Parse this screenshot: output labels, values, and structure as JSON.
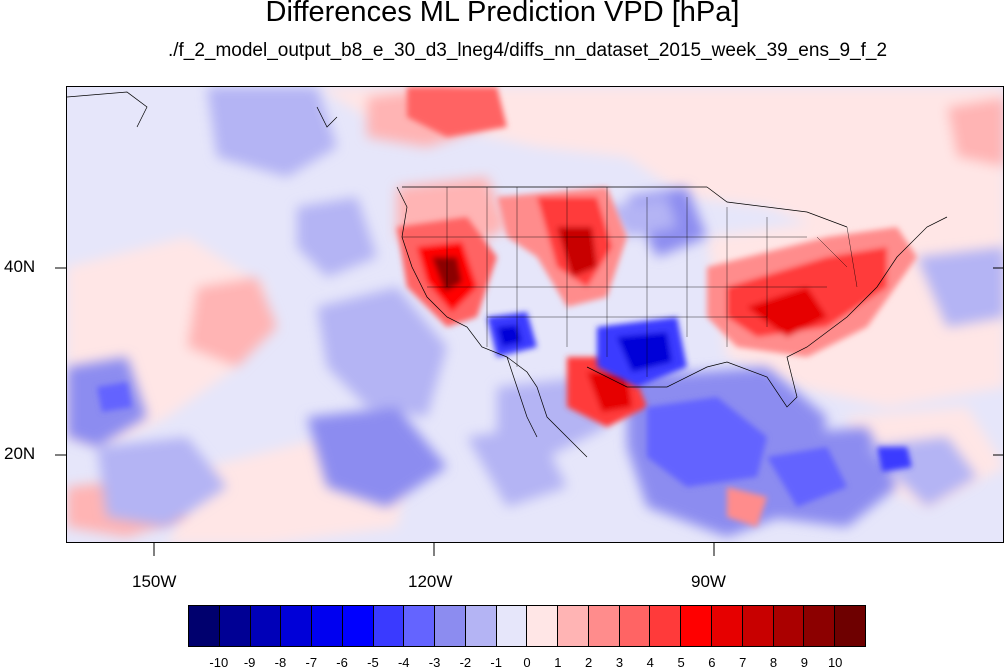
{
  "title": "Differences ML Prediction VPD [hPa]",
  "subtitle": "./f_2_model_output_b8_e_30_d3_lneg4/diffs_nn_dataset_2015_week_39_ens_9_f_2",
  "map": {
    "lon_labels": [
      "150W",
      "120W",
      "90W"
    ],
    "lat_labels": [
      "40N",
      "20N"
    ]
  },
  "colorbar": {
    "labels": [
      "-10",
      "-9",
      "-8",
      "-7",
      "-6",
      "-5",
      "-4",
      "-3",
      "-2",
      "-1",
      "0",
      "1",
      "2",
      "3",
      "4",
      "5",
      "6",
      "7",
      "8",
      "9",
      "10"
    ],
    "colors": [
      "#00006e",
      "#000094",
      "#0000b8",
      "#0000d8",
      "#0000f0",
      "#0000ff",
      "#3a3aff",
      "#6464ff",
      "#8c8cf0",
      "#b4b4f4",
      "#e6e6fa",
      "#ffe6e6",
      "#ffb4b4",
      "#ff8c8c",
      "#ff6464",
      "#ff3a3a",
      "#ff0000",
      "#e60000",
      "#c80000",
      "#aa0000",
      "#8c0000",
      "#6e0000"
    ]
  }
}
